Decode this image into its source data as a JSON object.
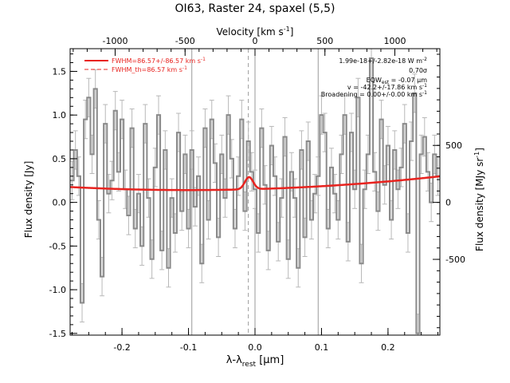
{
  "chart_data": {
    "type": "line",
    "title": "OI63, Raster 24, spaxel (5,5)",
    "xlabel": "λ-λ",
    "xlabel_sub": "rest",
    "xlabel_unit": " [μm]",
    "ylabel_left": "Flux density [Jy]",
    "ylabel_right": "Flux density [MJy sr",
    "ylabel_right_sup": "-1",
    "ylabel_right_close": "]",
    "top_axis_label": "Velocity [km s",
    "top_axis_sup": "-1",
    "top_axis_close": "]",
    "xlim": [
      -0.278,
      0.278
    ],
    "ylim": [
      -1.52,
      1.76
    ],
    "right_ylim": [
      -1165,
      1349
    ],
    "top_xlim": [
      -1322,
      1322
    ],
    "x_ticks": [
      -0.2,
      -0.1,
      0.0,
      0.1,
      0.2
    ],
    "x_tick_labels": [
      "-0.2",
      "-0.1",
      "0.0",
      "0.1",
      "0.2"
    ],
    "y_ticks": [
      -1.5,
      -1.0,
      -0.5,
      0.0,
      0.5,
      1.0,
      1.5
    ],
    "y_tick_labels": [
      "-1.5",
      "-1.0",
      "-0.5",
      "0.0",
      "0.5",
      "1.0",
      "1.5"
    ],
    "right_ticks": [
      -500,
      0,
      500
    ],
    "right_tick_labels": [
      "-500",
      "0",
      "500"
    ],
    "top_ticks": [
      -1000,
      -500,
      0,
      500,
      1000
    ],
    "top_tick_labels": [
      "-1000",
      "-500",
      "0",
      "500",
      "1000"
    ],
    "vertical_lines": [
      -0.095,
      0.0,
      0.095
    ],
    "dashed_line": -0.01,
    "legend": {
      "position": "top-left",
      "entries": [
        {
          "label": "FWHM=86.57+/-86.57 km s",
          "sup": "-1",
          "style": "solid",
          "color": "#e8231f"
        },
        {
          "label": "FWHM_th=86.57 km s",
          "sup": "-1",
          "style": "dashed",
          "color": "#e8231f"
        }
      ]
    },
    "annotations": [
      {
        "text": "1.99e-18+/-2.82e-18 W m",
        "sup": "-2"
      },
      {
        "text": "0.70σ"
      },
      {
        "text": "EQW",
        "sub": "est",
        "tail": " = -0.07 μm"
      },
      {
        "text": "v = -42.2+/-17.86 km s",
        "sup": "-1"
      },
      {
        "text": "Broadening = 0.00+/-0.00 km s",
        "sup": "-1"
      }
    ],
    "series": [
      {
        "name": "data",
        "style": "step",
        "color": "#8a8a8a",
        "x": [
          -0.275,
          -0.27,
          -0.265,
          -0.26,
          -0.255,
          -0.25,
          -0.245,
          -0.24,
          -0.235,
          -0.23,
          -0.225,
          -0.22,
          -0.215,
          -0.21,
          -0.205,
          -0.2,
          -0.195,
          -0.19,
          -0.185,
          -0.18,
          -0.175,
          -0.17,
          -0.165,
          -0.16,
          -0.155,
          -0.15,
          -0.145,
          -0.14,
          -0.135,
          -0.13,
          -0.125,
          -0.12,
          -0.115,
          -0.11,
          -0.105,
          -0.1,
          -0.095,
          -0.09,
          -0.085,
          -0.08,
          -0.075,
          -0.07,
          -0.065,
          -0.06,
          -0.055,
          -0.05,
          -0.045,
          -0.04,
          -0.035,
          -0.03,
          -0.025,
          -0.02,
          -0.015,
          -0.01,
          -0.005,
          0.0,
          0.005,
          0.01,
          0.015,
          0.02,
          0.025,
          0.03,
          0.035,
          0.04,
          0.045,
          0.05,
          0.055,
          0.06,
          0.065,
          0.07,
          0.075,
          0.08,
          0.085,
          0.09,
          0.095,
          0.1,
          0.105,
          0.11,
          0.115,
          0.12,
          0.125,
          0.13,
          0.135,
          0.14,
          0.145,
          0.15,
          0.155,
          0.16,
          0.165,
          0.17,
          0.175,
          0.18,
          0.185,
          0.19,
          0.195,
          0.2,
          0.205,
          0.21,
          0.215,
          0.22,
          0.225,
          0.23,
          0.235,
          0.24,
          0.245,
          0.25,
          0.255,
          0.26,
          0.265,
          0.27,
          0.275
        ],
        "y": [
          0.25,
          0.6,
          0.3,
          -1.15,
          0.95,
          1.2,
          0.55,
          1.3,
          -0.2,
          -0.85,
          0.9,
          0.1,
          0.25,
          1.05,
          0.35,
          0.95,
          0.15,
          -0.15,
          0.85,
          -0.3,
          0.1,
          -0.5,
          0.9,
          0.05,
          -0.65,
          0.4,
          1.0,
          -0.55,
          0.6,
          -0.75,
          0.05,
          -0.35,
          0.8,
          -0.1,
          0.55,
          -0.3,
          0.6,
          -0.05,
          0.3,
          -0.7,
          0.85,
          -0.2,
          0.95,
          0.45,
          -0.4,
          0.55,
          0.05,
          1.0,
          0.5,
          -0.3,
          0.3,
          0.95,
          -0.1,
          0.7,
          0.35,
          0.15,
          -0.35,
          0.85,
          0.2,
          -0.55,
          0.65,
          0.3,
          -0.45,
          0.05,
          0.75,
          -0.65,
          0.35,
          0.05,
          -0.75,
          0.6,
          -0.4,
          0.7,
          -0.2,
          0.1,
          0.3,
          1.0,
          0.8,
          -0.3,
          0.4,
          0.1,
          -0.2,
          0.55,
          1.0,
          -0.45,
          0.8,
          0.15,
          1.2,
          -0.7,
          0.15,
          0.55,
          1.65,
          0.35,
          -0.1,
          0.95,
          0.2,
          0.65,
          -0.2,
          0.6,
          0.15,
          0.4,
          0.9,
          -0.35,
          0.7,
          1.25,
          -1.5,
          0.55,
          0.75,
          0.35,
          0.0,
          0.55,
          0.3
        ],
        "yerr": 0.22
      },
      {
        "name": "fit",
        "style": "line",
        "color": "#e8231f",
        "continuum": [
          0.152,
          0.22,
          1.1
        ],
        "gaussian": {
          "amplitude": 0.14,
          "center": -0.009,
          "sigma": 0.0062
        }
      }
    ]
  }
}
